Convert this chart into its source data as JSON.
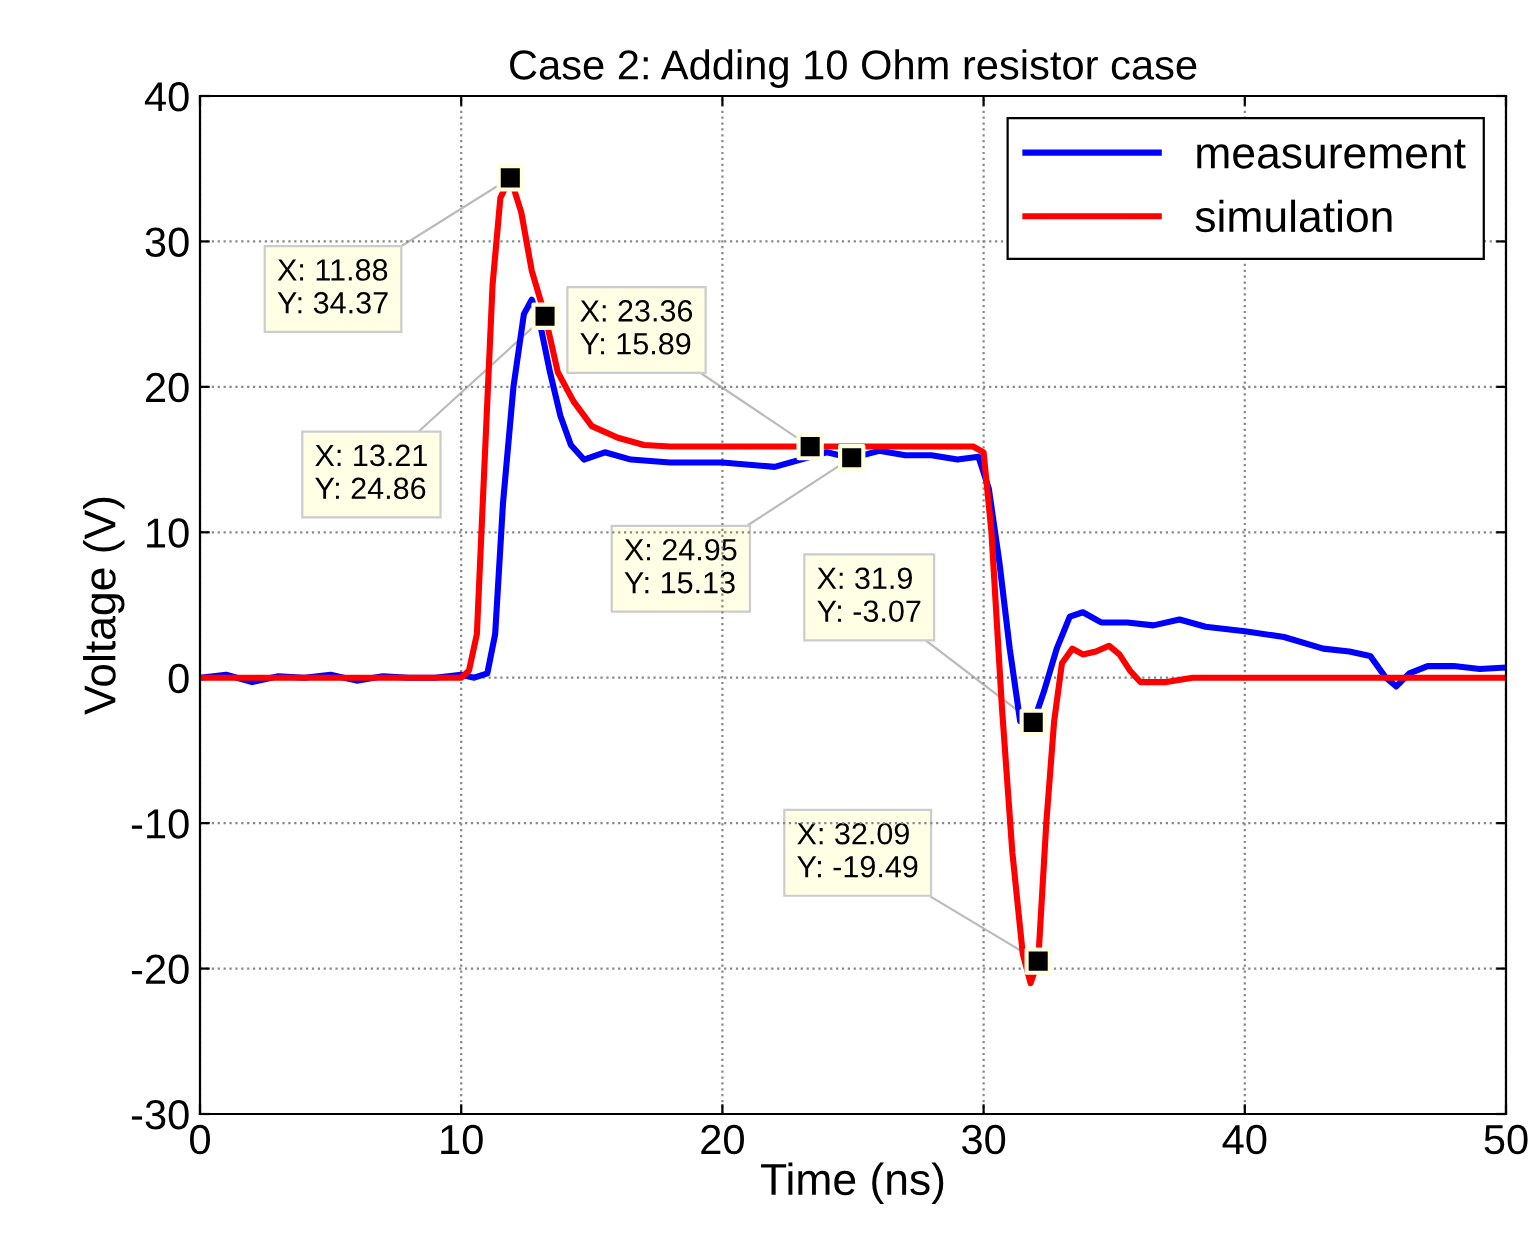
{
  "chart_data": {
    "type": "line",
    "title": "Case 2: Adding 10 Ohm resistor case",
    "xlabel": "Time (ns)",
    "ylabel": "Voltage (V)",
    "xlim": [
      0,
      50
    ],
    "ylim": [
      -30,
      40
    ],
    "xticks": [
      0,
      10,
      20,
      30,
      40,
      50
    ],
    "yticks": [
      -30,
      -20,
      -10,
      0,
      10,
      20,
      30,
      40
    ],
    "grid": true,
    "legend": "top right",
    "marker": "none",
    "line_style": "solid",
    "series": [
      {
        "name": "measurement",
        "color": "#0000ff",
        "x": [
          0,
          1,
          2,
          3,
          4,
          5,
          6,
          7,
          8,
          9,
          10,
          10.5,
          11,
          11.3,
          11.6,
          12,
          12.4,
          12.7,
          13,
          13.4,
          13.8,
          14.2,
          14.7,
          15.5,
          16.5,
          18,
          20,
          22,
          24,
          24.95,
          26,
          27,
          28,
          29,
          29.8,
          30.2,
          30.6,
          31,
          31.4,
          31.9,
          32.3,
          32.8,
          33.3,
          33.8,
          34.5,
          35.5,
          36.5,
          37.5,
          38.5,
          40,
          41.5,
          43,
          44,
          44.8,
          45.4,
          45.8,
          46.3,
          47,
          48,
          49,
          50
        ],
        "values": [
          0,
          0.2,
          -0.3,
          0.1,
          0,
          0.2,
          -0.2,
          0.1,
          0,
          0,
          0.2,
          0,
          0.3,
          3,
          12,
          20,
          25,
          26,
          24.5,
          21,
          18,
          16,
          15,
          15.5,
          15,
          14.8,
          14.8,
          14.5,
          15.5,
          15.1,
          15.6,
          15.3,
          15.3,
          15,
          15.2,
          13,
          8,
          2,
          -3,
          -3.1,
          -1,
          2,
          4.2,
          4.5,
          3.8,
          3.8,
          3.6,
          4,
          3.5,
          3.2,
          2.8,
          2,
          1.8,
          1.5,
          0,
          -0.6,
          0.3,
          0.8,
          0.8,
          0.6,
          0.7
        ]
      },
      {
        "name": "simulation",
        "color": "#ff0000",
        "x": [
          0,
          5,
          9,
          10,
          10.3,
          10.6,
          10.9,
          11.2,
          11.5,
          11.88,
          12.3,
          12.7,
          13.21,
          13.7,
          14.3,
          15,
          16,
          17,
          18,
          20,
          23.36,
          26,
          29.6,
          30,
          30.3,
          30.7,
          31.1,
          31.5,
          31.8,
          32.09,
          32.4,
          32.7,
          33,
          33.4,
          33.8,
          34.3,
          34.8,
          35.2,
          35.6,
          36,
          37,
          38,
          40,
          45,
          50
        ],
        "values": [
          0,
          0,
          0,
          0,
          0.5,
          3,
          15,
          27,
          33,
          34.4,
          32,
          28,
          24.9,
          21,
          19,
          17.3,
          16.5,
          16,
          15.9,
          15.9,
          15.9,
          15.9,
          15.9,
          15.5,
          10,
          -2,
          -12,
          -19,
          -21,
          -19.5,
          -10,
          -3,
          1,
          2,
          1.6,
          1.8,
          2.2,
          1.6,
          0.5,
          -0.3,
          -0.3,
          0,
          0,
          0,
          0
        ]
      }
    ],
    "annotations": [
      {
        "text": "X: 11.88\nY: 34.37",
        "x": 11.88,
        "y": 34.37
      },
      {
        "text": "X: 13.21\nY: 24.86",
        "x": 13.21,
        "y": 24.86
      },
      {
        "text": "X: 23.36\nY: 15.89",
        "x": 23.36,
        "y": 15.89
      },
      {
        "text": "X: 24.95\nY: 15.13",
        "x": 24.95,
        "y": 15.13
      },
      {
        "text": "X: 31.9\nY: -3.07",
        "x": 31.9,
        "y": -3.07
      },
      {
        "text": "X: 32.09\nY: -19.49",
        "x": 32.09,
        "y": -19.49
      }
    ]
  }
}
